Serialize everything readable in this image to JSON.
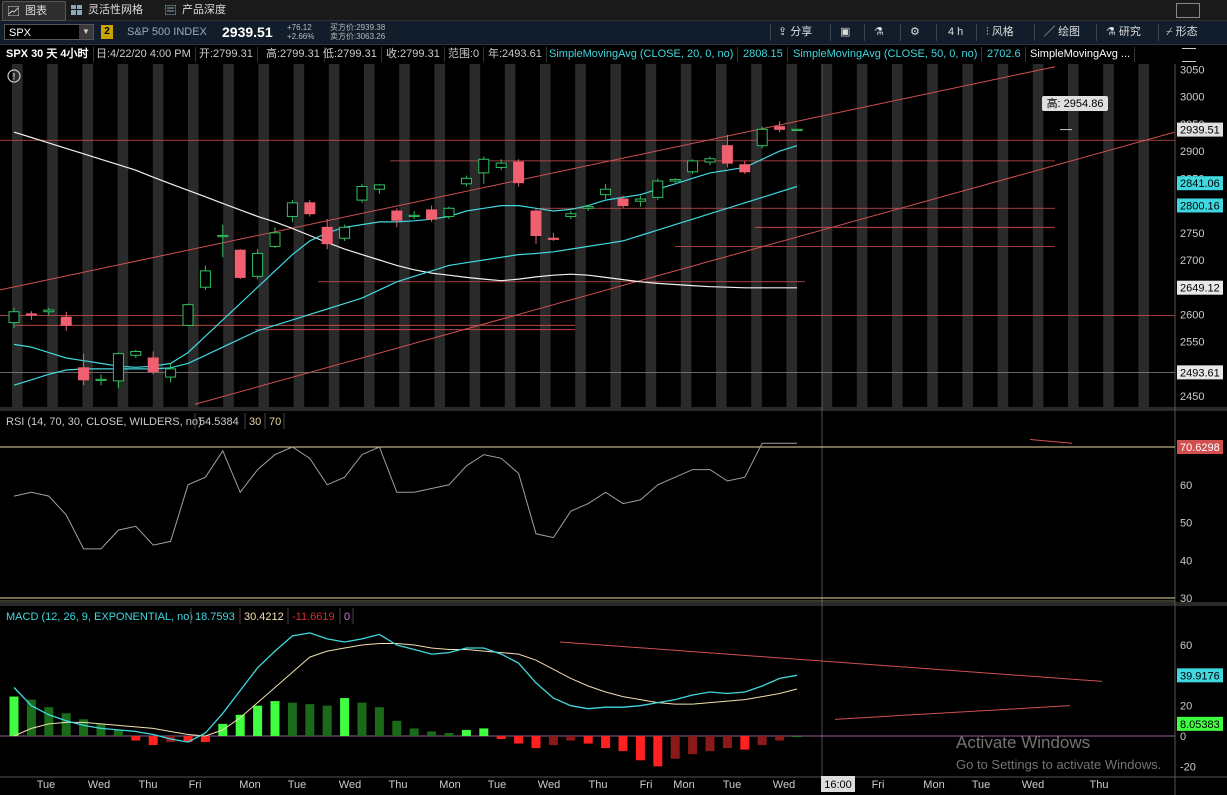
{
  "topnav": {
    "tabs": [
      {
        "label": "图表",
        "icon": "chart-icon"
      },
      {
        "label": "灵活性网格",
        "icon": "grid-icon"
      },
      {
        "label": "产品深度",
        "icon": "depth-icon"
      }
    ]
  },
  "toolbar": {
    "symbol": "SPX",
    "link_badge": "2",
    "description": "S&P 500 INDEX",
    "last_price": "2939.51",
    "change": "+76.12",
    "change_pct": "+2.66%",
    "bid_label": "买方价:2939.38",
    "ask_label": "卖方价:3063.26",
    "buttons": {
      "share": "分享",
      "timeframe": "4 h",
      "style": "风格",
      "drawing": "绘图",
      "studies": "研究",
      "patterns": "形态"
    }
  },
  "studybar": {
    "chart_title": "SPX 30 天 4小时",
    "date": "日:4/22/20 4:00 PM",
    "open": "开:2799.31",
    "high": "高:2799.31",
    "low": "低:2799.31",
    "close": "收:2799.31",
    "range": "范围:0",
    "year": "年:2493.61",
    "sma20_label": "SimpleMovingAvg (CLOSE, 20, 0, no)",
    "sma20_value": "2808.15",
    "sma50_label": "SimpleMovingAvg (CLOSE, 50, 0, no)",
    "sma50_value": "2702.6",
    "sma_more_label": "SimpleMovingAvg ..."
  },
  "price_panel": {
    "y_ticks": [
      "3050",
      "3000",
      "2950",
      "2900",
      "2850",
      "2800",
      "2750",
      "2700",
      "2650",
      "2600",
      "2550",
      "2500",
      "2450"
    ],
    "high_bubble": "高: 2954.86",
    "price_tags": [
      {
        "text": "2939.51",
        "price": 2939.51,
        "bg": "#e0e0e0",
        "fg": "#000"
      },
      {
        "text": "2841.06",
        "price": 2841.06,
        "bg": "#40d8e0",
        "fg": "#000"
      },
      {
        "text": "2800.16",
        "price": 2800.16,
        "bg": "#40d8e0",
        "fg": "#000"
      },
      {
        "text": "2649.12",
        "price": 2649.12,
        "bg": "#e8e8e8",
        "fg": "#000"
      },
      {
        "text": "2493.61",
        "price": 2493.61,
        "bg": "#e8e8e8",
        "fg": "#000"
      }
    ]
  },
  "rsi_panel": {
    "label": "RSI (14, 70, 30, CLOSE, WILDERS, no)",
    "value": "54.5384",
    "lower": "30",
    "upper": "70",
    "value_tag": "70.6298",
    "y_ticks": [
      "60",
      "50",
      "40",
      "30"
    ]
  },
  "macd_panel": {
    "label": "MACD (12, 26, 9, EXPONENTIAL, no)",
    "value": "18.7593",
    "avg": "30.4212",
    "diff": "-11.6619",
    "zero": "0",
    "value_tag": "39.9176",
    "diff_tag": "8.05383",
    "y_ticks": [
      "60",
      "40",
      "20",
      "0",
      "-20"
    ]
  },
  "x_axis": {
    "labels": [
      "Tue",
      "Wed",
      "Thu",
      "Fri",
      "Mon",
      "Tue",
      "Wed",
      "Thu",
      "Mon",
      "Tue",
      "Wed",
      "Thu",
      "Fri",
      "Mon",
      "Tue",
      "Wed",
      "16:00",
      "Fri",
      "Mon",
      "Tue",
      "Wed",
      "Thu"
    ]
  },
  "watermark": {
    "line1": "Activate Windows",
    "line2": "Go to Settings to activate Windows."
  },
  "colors": {
    "up": "#30c060",
    "down": "#f06070",
    "sma_cyan": "#40d8e0",
    "sma_white": "#f0f0f0",
    "trend_red": "#d05050",
    "rsi_line": "#a0a0a0",
    "rsi_band": "#e8d8a0",
    "macd_avg": "#f0e0b0",
    "hist_pos_bright": "#40ff40",
    "hist_pos_dark": "#1a6a1a",
    "hist_neg_bright": "#ff2020",
    "hist_neg_dark": "#8a1a1a"
  },
  "chart_data": {
    "type": "candlestick",
    "title": "SPX 30 天 4小时",
    "ylim": [
      2430,
      3060
    ],
    "candles": [
      {
        "o": 2585,
        "h": 2612,
        "l": 2575,
        "c": 2605
      },
      {
        "o": 2601,
        "h": 2606,
        "l": 2590,
        "c": 2600
      },
      {
        "o": 2605,
        "h": 2612,
        "l": 2598,
        "c": 2608
      },
      {
        "o": 2595,
        "h": 2605,
        "l": 2570,
        "c": 2580
      },
      {
        "o": 2502,
        "h": 2528,
        "l": 2470,
        "c": 2480
      },
      {
        "o": 2480,
        "h": 2490,
        "l": 2470,
        "c": 2481
      },
      {
        "o": 2478,
        "h": 2530,
        "l": 2465,
        "c": 2528
      },
      {
        "o": 2525,
        "h": 2535,
        "l": 2520,
        "c": 2532
      },
      {
        "o": 2520,
        "h": 2532,
        "l": 2490,
        "c": 2495
      },
      {
        "o": 2485,
        "h": 2510,
        "l": 2475,
        "c": 2500
      },
      {
        "o": 2580,
        "h": 2620,
        "l": 2578,
        "c": 2618
      },
      {
        "o": 2650,
        "h": 2690,
        "l": 2645,
        "c": 2680
      },
      {
        "o": 2744,
        "h": 2765,
        "l": 2705,
        "c": 2745
      },
      {
        "o": 2718,
        "h": 2720,
        "l": 2665,
        "c": 2668
      },
      {
        "o": 2670,
        "h": 2720,
        "l": 2665,
        "c": 2712
      },
      {
        "o": 2725,
        "h": 2760,
        "l": 2722,
        "c": 2750
      },
      {
        "o": 2780,
        "h": 2810,
        "l": 2770,
        "c": 2805
      },
      {
        "o": 2805,
        "h": 2810,
        "l": 2780,
        "c": 2785
      },
      {
        "o": 2760,
        "h": 2775,
        "l": 2720,
        "c": 2730
      },
      {
        "o": 2740,
        "h": 2765,
        "l": 2735,
        "c": 2760
      },
      {
        "o": 2810,
        "h": 2840,
        "l": 2805,
        "c": 2835
      },
      {
        "o": 2830,
        "h": 2840,
        "l": 2822,
        "c": 2838
      },
      {
        "o": 2790,
        "h": 2795,
        "l": 2760,
        "c": 2773
      },
      {
        "o": 2780,
        "h": 2790,
        "l": 2775,
        "c": 2782
      },
      {
        "o": 2792,
        "h": 2800,
        "l": 2770,
        "c": 2775
      },
      {
        "o": 2780,
        "h": 2798,
        "l": 2775,
        "c": 2795
      },
      {
        "o": 2840,
        "h": 2855,
        "l": 2835,
        "c": 2850
      },
      {
        "o": 2860,
        "h": 2890,
        "l": 2840,
        "c": 2885
      },
      {
        "o": 2870,
        "h": 2885,
        "l": 2865,
        "c": 2878
      },
      {
        "o": 2880,
        "h": 2885,
        "l": 2835,
        "c": 2842
      },
      {
        "o": 2790,
        "h": 2795,
        "l": 2730,
        "c": 2745
      },
      {
        "o": 2740,
        "h": 2750,
        "l": 2735,
        "c": 2738
      },
      {
        "o": 2780,
        "h": 2790,
        "l": 2775,
        "c": 2785
      },
      {
        "o": 2795,
        "h": 2800,
        "l": 2790,
        "c": 2798
      },
      {
        "o": 2820,
        "h": 2840,
        "l": 2812,
        "c": 2830
      },
      {
        "o": 2812,
        "h": 2818,
        "l": 2795,
        "c": 2800
      },
      {
        "o": 2808,
        "h": 2818,
        "l": 2798,
        "c": 2812
      },
      {
        "o": 2815,
        "h": 2850,
        "l": 2810,
        "c": 2845
      },
      {
        "o": 2845,
        "h": 2850,
        "l": 2842,
        "c": 2848
      },
      {
        "o": 2862,
        "h": 2885,
        "l": 2858,
        "c": 2882
      },
      {
        "o": 2880,
        "h": 2890,
        "l": 2874,
        "c": 2886
      },
      {
        "o": 2910,
        "h": 2930,
        "l": 2870,
        "c": 2878
      },
      {
        "o": 2875,
        "h": 2882,
        "l": 2858,
        "c": 2862
      },
      {
        "o": 2910,
        "h": 2945,
        "l": 2905,
        "c": 2940
      },
      {
        "o": 2945,
        "h": 2955,
        "l": 2935,
        "c": 2940
      },
      {
        "o": 2940,
        "h": 2941,
        "l": 2939,
        "c": 2940
      }
    ],
    "sma20": [
      2545,
      2540,
      2530,
      2520,
      2515,
      2510,
      2505,
      2503,
      2505,
      2510,
      2530,
      2560,
      2590,
      2620,
      2650,
      2680,
      2710,
      2735,
      2750,
      2760,
      2765,
      2770,
      2770,
      2772,
      2775,
      2780,
      2790,
      2795,
      2800,
      2800,
      2795,
      2790,
      2793,
      2800,
      2810,
      2815,
      2820,
      2830,
      2840,
      2850,
      2860,
      2865,
      2870,
      2885,
      2900,
      2910
    ],
    "sma50": [
      2470,
      2480,
      2490,
      2498,
      2500,
      2500,
      2500,
      2500,
      2500,
      2502,
      2510,
      2525,
      2540,
      2555,
      2570,
      2580,
      2590,
      2600,
      2610,
      2620,
      2630,
      2645,
      2660,
      2670,
      2680,
      2690,
      2695,
      2700,
      2705,
      2710,
      2712,
      2715,
      2720,
      2725,
      2730,
      2735,
      2745,
      2755,
      2765,
      2775,
      2785,
      2795,
      2805,
      2815,
      2825,
      2835
    ],
    "sma_long": [
      2935,
      2925,
      2915,
      2905,
      2895,
      2885,
      2875,
      2865,
      2852,
      2840,
      2828,
      2816,
      2804,
      2792,
      2780,
      2770,
      2758,
      2745,
      2732,
      2720,
      2710,
      2700,
      2690,
      2682,
      2676,
      2672,
      2668,
      2665,
      2662,
      2665,
      2669,
      2672,
      2674,
      2672,
      2668,
      2664,
      2660,
      2657,
      2655,
      2653,
      2651,
      2650,
      2649,
      2649,
      2649,
      2649
    ],
    "rsi": [
      57,
      58,
      57,
      52,
      43,
      43,
      48,
      49,
      44,
      45,
      60,
      62,
      69,
      58,
      64,
      68,
      70,
      67,
      60,
      62,
      68,
      70,
      58,
      58,
      59,
      60,
      65,
      68,
      67,
      63,
      47,
      46,
      53,
      55,
      58,
      55,
      56,
      60,
      62,
      64,
      64,
      61,
      62,
      71,
      71,
      71
    ],
    "macd_value": [
      32,
      20,
      14,
      10,
      7,
      5,
      4,
      3,
      1,
      -2,
      -4,
      2,
      15,
      30,
      45,
      56,
      66,
      68,
      64,
      62,
      64,
      67,
      60,
      57,
      54,
      55,
      58,
      58,
      54,
      48,
      35,
      25,
      20,
      18,
      19,
      19,
      20,
      22,
      24,
      27,
      29,
      28,
      29,
      33,
      38,
      40
    ],
    "macd_avg": [
      0,
      5,
      8,
      9,
      9,
      8,
      7,
      6,
      5,
      3,
      1,
      0,
      4,
      12,
      22,
      32,
      42,
      52,
      56,
      58,
      60,
      61,
      61,
      60,
      58,
      57,
      57,
      56,
      55,
      54,
      50,
      44,
      38,
      33,
      29,
      26,
      24,
      22,
      21,
      21,
      22,
      23,
      24,
      26,
      28,
      31
    ],
    "macd_diff": [
      26,
      24,
      19,
      15,
      11,
      8,
      4,
      -3,
      -6,
      -4,
      -4,
      -4,
      8,
      14,
      20,
      23,
      22,
      21,
      20,
      25,
      22,
      19,
      10,
      5,
      3,
      2,
      4,
      5,
      -2,
      -5,
      -8,
      -6,
      -3,
      -5,
      -8,
      -10,
      -16,
      -20,
      -15,
      -12,
      -10,
      -8,
      -9,
      -6,
      -3,
      0
    ]
  }
}
